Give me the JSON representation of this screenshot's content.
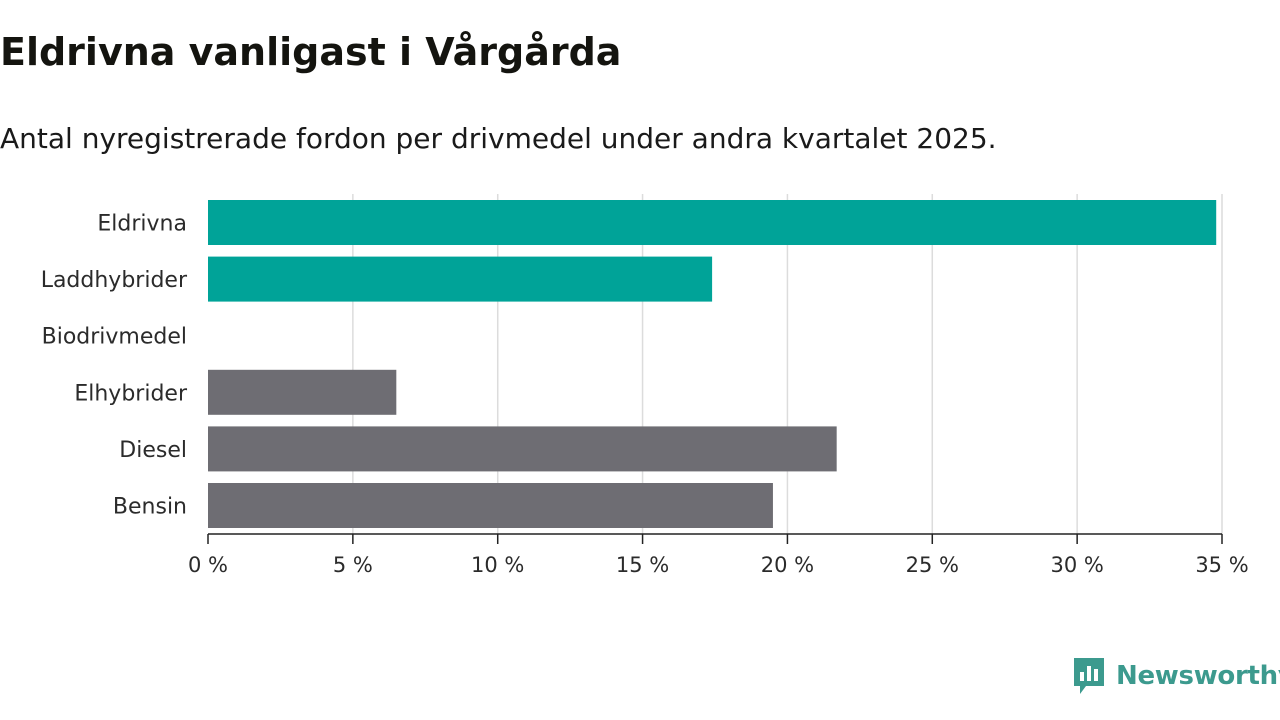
{
  "title": "Eldrivna vanligast i Vårgårda",
  "subtitle": "Antal nyregistrerade fordon per drivmedel under andra kvartalet 2025.",
  "logo_text": "Newsworthy",
  "colors": {
    "highlight": "#00a398",
    "default": "#6e6d73",
    "grid": "#dcdcdc",
    "axis": "#222222"
  },
  "chart_data": {
    "type": "bar",
    "orientation": "horizontal",
    "title": "Eldrivna vanligast i Vårgårda",
    "subtitle": "Antal nyregistrerade fordon per drivmedel under andra kvartalet 2025.",
    "categories": [
      "Eldrivna",
      "Laddhybrider",
      "Biodrivmedel",
      "Elhybrider",
      "Diesel",
      "Bensin"
    ],
    "values": [
      34.8,
      17.4,
      0,
      6.5,
      21.7,
      19.5
    ],
    "unit": "%",
    "highlighted": [
      true,
      true,
      true,
      false,
      false,
      false
    ],
    "xlim": [
      0,
      35
    ],
    "xticks": [
      "0 %",
      "5 %",
      "10 %",
      "15 %",
      "20 %",
      "25 %",
      "30 %",
      "35 %"
    ],
    "xlabel": "",
    "ylabel": "",
    "grid": true,
    "legend": "none"
  }
}
